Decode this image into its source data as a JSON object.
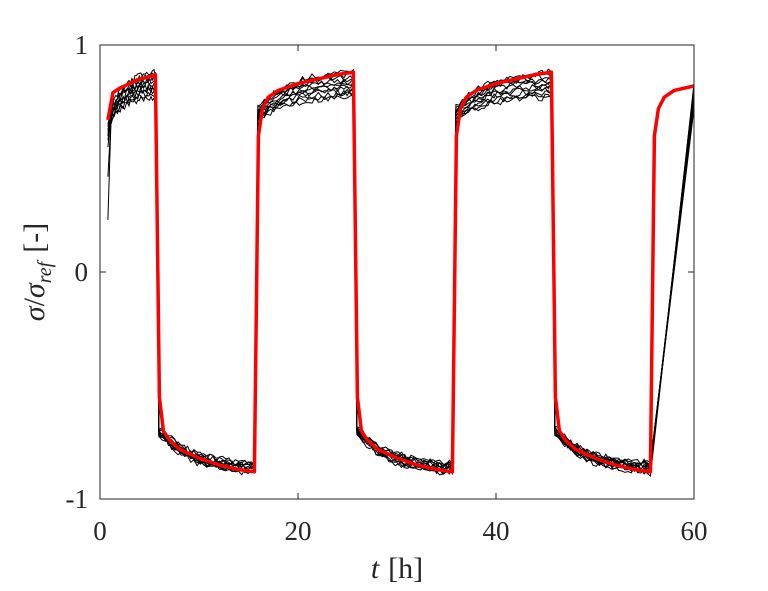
{
  "chart_data": {
    "type": "line",
    "title": "",
    "xlabel": {
      "var": "t",
      "unit": "[h]"
    },
    "ylabel": {
      "sigma": "σ",
      "slash": "/",
      "sub": "ref",
      "unit": "[-]"
    },
    "xlim": [
      0,
      60
    ],
    "ylim": [
      -1,
      1
    ],
    "xticks": [
      0,
      20,
      40,
      60
    ],
    "xtick_labels": [
      "0",
      "20",
      "40",
      "60"
    ],
    "yticks": [
      -1,
      0,
      1
    ],
    "ytick_labels": [
      "-1",
      "0",
      "1"
    ],
    "grid": false,
    "legend": "none",
    "colors": {
      "measured": "#000000",
      "model": "#ff0000",
      "axes": "#262626"
    },
    "cycle": {
      "period_h": 20,
      "switch_times_h": [
        0.8,
        5.6,
        15.6,
        25.6,
        35.6,
        45.6,
        55.6
      ],
      "levels": {
        "start": 0.68,
        "high_knee": 0.72,
        "high_end": 0.87,
        "low_knee": -0.71,
        "low_end": -0.88
      }
    },
    "series": [
      {
        "role": "model",
        "color": "#ff0000",
        "x": [
          0.8,
          1.3,
          2,
          3,
          4,
          5,
          5.6,
          6.0,
          6.4,
          7,
          8,
          10,
          12,
          14,
          15.6,
          16.0,
          16.4,
          17,
          18,
          20,
          22,
          24,
          25.6,
          26.0,
          26.4,
          27,
          28,
          30,
          32,
          34,
          35.6,
          36.0,
          36.4,
          37,
          38,
          40,
          42,
          44,
          45.6,
          46.0,
          46.4,
          47,
          48,
          50,
          52,
          54,
          55.6,
          56.0,
          56.4,
          57,
          58,
          60
        ],
        "y": [
          0.67,
          0.79,
          0.81,
          0.83,
          0.85,
          0.86,
          0.87,
          -0.55,
          -0.7,
          -0.74,
          -0.78,
          -0.82,
          -0.85,
          -0.87,
          -0.88,
          0.6,
          0.72,
          0.77,
          0.8,
          0.83,
          0.85,
          0.87,
          0.88,
          -0.55,
          -0.7,
          -0.74,
          -0.78,
          -0.82,
          -0.85,
          -0.87,
          -0.88,
          0.6,
          0.72,
          0.77,
          0.8,
          0.83,
          0.85,
          0.87,
          0.88,
          -0.55,
          -0.7,
          -0.74,
          -0.78,
          -0.82,
          -0.85,
          -0.87,
          -0.88,
          0.6,
          0.72,
          0.77,
          0.8,
          0.82
        ]
      },
      {
        "role": "measured",
        "color": "#000000",
        "offset": 0.0,
        "first": 0.23
      },
      {
        "role": "measured",
        "color": "#000000",
        "offset": -0.02,
        "first": 0.42
      },
      {
        "role": "measured",
        "color": "#000000",
        "offset": -0.04,
        "first": 0.55
      },
      {
        "role": "measured",
        "color": "#000000",
        "offset": -0.06,
        "first": 0.6
      },
      {
        "role": "measured",
        "color": "#000000",
        "offset": -0.08,
        "first": 0.63
      },
      {
        "role": "measured",
        "color": "#000000",
        "offset": -0.1,
        "first": 0.64
      },
      {
        "role": "measured",
        "color": "#000000",
        "offset": 0.01,
        "first": 0.65
      },
      {
        "role": "measured",
        "color": "#000000",
        "offset": -0.03,
        "first": 0.62
      },
      {
        "role": "measured",
        "color": "#000000",
        "offset": -0.05,
        "first": 0.6
      },
      {
        "role": "measured",
        "color": "#000000",
        "offset": -0.07,
        "first": 0.58
      },
      {
        "role": "measured",
        "color": "#000000",
        "offset": -0.09,
        "first": 0.61
      },
      {
        "role": "measured",
        "color": "#000000",
        "offset": -0.01,
        "first": 0.64
      }
    ]
  }
}
